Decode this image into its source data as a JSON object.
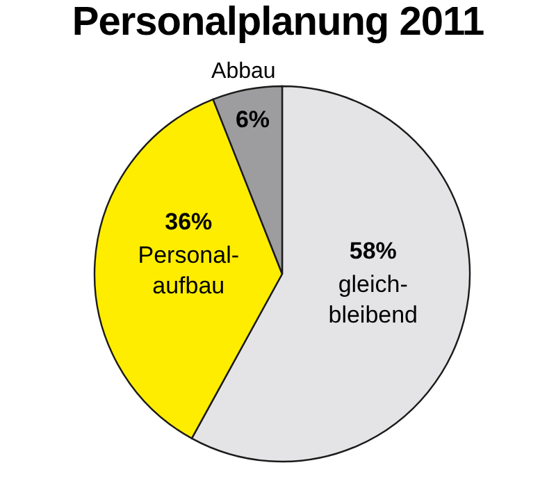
{
  "chart_data": {
    "type": "pie",
    "title": "Personalplanung 2011",
    "categories": [
      "gleich-\nbleibend",
      "Personal-\naufbau",
      "Abbau"
    ],
    "values": [
      58,
      36,
      6
    ],
    "colors": [
      "#e4e4e6",
      "#ffed00",
      "#9d9d9f"
    ],
    "value_labels": [
      "58%",
      "36%",
      "6%"
    ]
  }
}
